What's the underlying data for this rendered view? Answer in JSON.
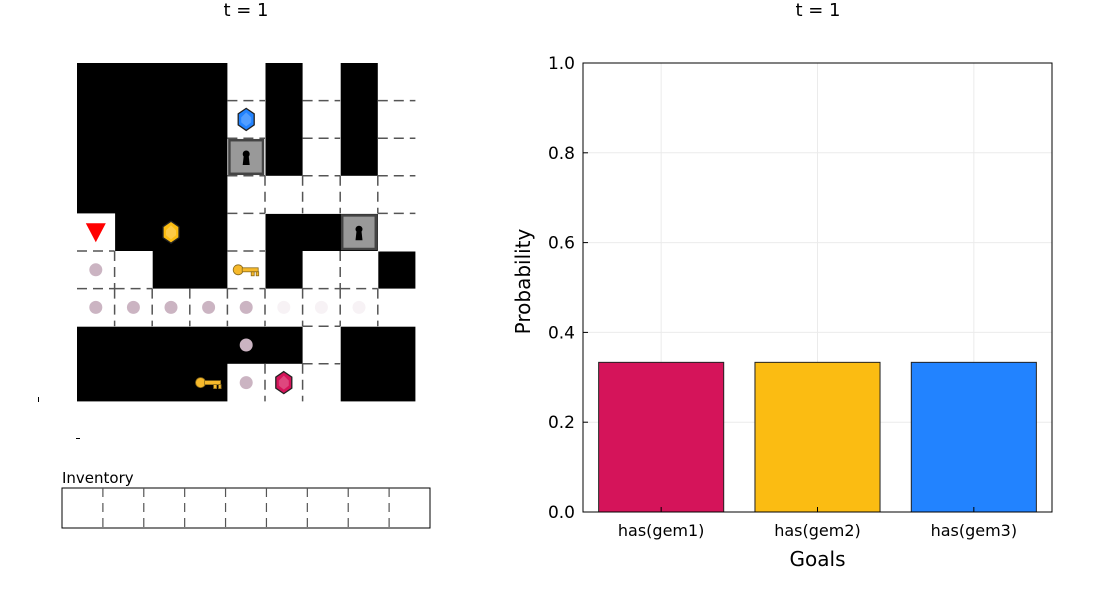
{
  "left_panel": {
    "title": "t = 1",
    "inventory_label": "Inventory",
    "inventory_slots": 9,
    "grid": {
      "rows": 9,
      "cols": 9,
      "floor": [
        "....#.#.#",
        "....#.#.#",
        "....#.#.#",
        "....#####",
        "#...#...#",
        "##..#.##.",
        "#########",
        "......#..",
        "....###.."
      ],
      "doors": [
        [
          2,
          4
        ],
        [
          4,
          7
        ]
      ],
      "keys": [
        [
          5,
          4
        ],
        [
          8,
          3
        ]
      ],
      "gems": [
        {
          "id": "gem1",
          "row": 8,
          "col": 5,
          "color": "#d5145a"
        },
        {
          "id": "gem2",
          "row": 4,
          "col": 2,
          "color": "#fbbc12"
        },
        {
          "id": "gem3",
          "row": 1,
          "col": 4,
          "color": "#2283ff"
        }
      ],
      "agent": {
        "row": 4,
        "col": 0,
        "color": "#ff0000",
        "facing": "down"
      },
      "trail": [
        [
          5,
          0
        ],
        [
          6,
          0
        ],
        [
          6,
          1
        ],
        [
          6,
          2
        ],
        [
          6,
          3
        ],
        [
          6,
          4
        ],
        [
          7,
          4
        ],
        [
          8,
          4
        ]
      ],
      "faint_trail": [
        [
          6,
          5
        ],
        [
          6,
          6
        ],
        [
          6,
          7
        ]
      ],
      "trail_color": "#cbb4c2"
    }
  },
  "chart_data": {
    "type": "bar",
    "title": "t = 1",
    "categories": [
      "has(gem1)",
      "has(gem2)",
      "has(gem3)"
    ],
    "values": [
      0.3333,
      0.3333,
      0.3333
    ],
    "colors": [
      "#d5145a",
      "#fbbc12",
      "#2283ff"
    ],
    "xlabel": "Goals",
    "ylabel": "Probability",
    "ylim": [
      0,
      1.0
    ],
    "yticks": [
      "0.0",
      "0.2",
      "0.4",
      "0.6",
      "0.8",
      "1.0"
    ],
    "grid": true,
    "legend": "none"
  }
}
